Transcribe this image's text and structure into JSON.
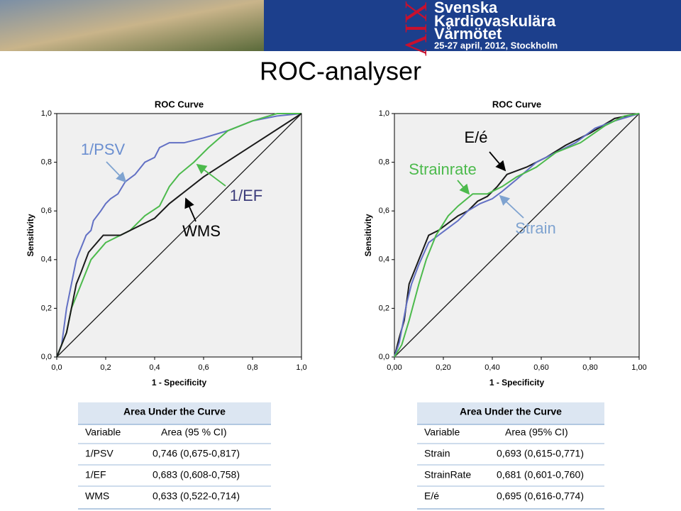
{
  "header": {
    "roman": "XIV",
    "line1": "Svenska",
    "line2": "Kardiovaskulära",
    "line3": "Vårmötet",
    "dates": "25-27 april, 2012, Stockholm"
  },
  "title": "ROC-analyser",
  "chart_data": [
    {
      "type": "line",
      "title": "ROC Curve",
      "x_label": "1 - Specificity",
      "y_label": "Sensitivity",
      "annotations": [
        "1/PSV",
        "1/EF",
        "WMS"
      ],
      "xlim": [
        0,
        1
      ],
      "ylim": [
        0,
        1
      ],
      "xticks": [
        {
          "value": 0,
          "label": "0,0"
        },
        {
          "value": 0.2,
          "label": "0,2"
        },
        {
          "value": 0.4,
          "label": "0,4"
        },
        {
          "value": 0.6,
          "label": "0,6"
        },
        {
          "value": 0.8,
          "label": "0,8"
        },
        {
          "value": 1,
          "label": "1,0"
        }
      ],
      "yticks": [
        {
          "value": 0,
          "label": "0,0"
        },
        {
          "value": 0.2,
          "label": "0,2"
        },
        {
          "value": 0.4,
          "label": "0,4"
        },
        {
          "value": 0.6,
          "label": "0,6"
        },
        {
          "value": 0.8,
          "label": "0,8"
        },
        {
          "value": 1,
          "label": "1,0"
        }
      ],
      "series": [
        {
          "name": "1/PSV",
          "color": "#6270c4",
          "x": [
            0,
            0.02,
            0.04,
            0.06,
            0.08,
            0.1,
            0.12,
            0.14,
            0.15,
            0.18,
            0.2,
            0.22,
            0.25,
            0.28,
            0.32,
            0.36,
            0.4,
            0.42,
            0.46,
            0.52,
            0.6,
            0.7,
            0.8,
            0.9,
            1
          ],
          "values": [
            0,
            0.05,
            0.2,
            0.3,
            0.4,
            0.45,
            0.5,
            0.52,
            0.56,
            0.6,
            0.63,
            0.65,
            0.67,
            0.72,
            0.75,
            0.8,
            0.82,
            0.86,
            0.88,
            0.88,
            0.9,
            0.93,
            0.97,
            0.99,
            1
          ]
        },
        {
          "name": "1/EF",
          "color": "#4cba4c",
          "x": [
            0,
            0.04,
            0.06,
            0.1,
            0.14,
            0.2,
            0.3,
            0.36,
            0.42,
            0.46,
            0.5,
            0.56,
            0.62,
            0.7,
            0.8,
            0.9,
            1
          ],
          "values": [
            0,
            0.1,
            0.2,
            0.3,
            0.4,
            0.47,
            0.52,
            0.58,
            0.62,
            0.7,
            0.75,
            0.8,
            0.86,
            0.93,
            0.97,
            1,
            1
          ]
        },
        {
          "name": "WMS",
          "color": "#1a1a1a",
          "x": [
            0,
            0.02,
            0.04,
            0.06,
            0.08,
            0.1,
            0.13,
            0.19,
            0.26,
            0.4,
            0.46,
            0.6,
            0.8,
            1
          ],
          "values": [
            0,
            0.05,
            0.1,
            0.2,
            0.3,
            0.35,
            0.43,
            0.5,
            0.5,
            0.57,
            0.63,
            0.74,
            0.87,
            1
          ]
        }
      ]
    },
    {
      "type": "line",
      "title": "ROC Curve",
      "x_label": "1 - Specificity",
      "y_label": "Sensitivity",
      "annotations": [
        "E/é",
        "Strainrate",
        "Strain"
      ],
      "xlim": [
        0,
        1
      ],
      "ylim": [
        0,
        1
      ],
      "xticks": [
        {
          "value": 0,
          "label": "0,00"
        },
        {
          "value": 0.2,
          "label": "0,20"
        },
        {
          "value": 0.4,
          "label": "0,40"
        },
        {
          "value": 0.6,
          "label": "0,60"
        },
        {
          "value": 0.8,
          "label": "0,80"
        },
        {
          "value": 1,
          "label": "1,00"
        }
      ],
      "yticks": [
        {
          "value": 0,
          "label": "0,0"
        },
        {
          "value": 0.2,
          "label": "0,2"
        },
        {
          "value": 0.4,
          "label": "0,4"
        },
        {
          "value": 0.6,
          "label": "0,6"
        },
        {
          "value": 0.8,
          "label": "0,8"
        },
        {
          "value": 1,
          "label": "1,0"
        }
      ],
      "series": [
        {
          "name": "E/é",
          "color": "#1a1a1a",
          "x": [
            0,
            0.02,
            0.04,
            0.06,
            0.1,
            0.12,
            0.14,
            0.18,
            0.22,
            0.26,
            0.3,
            0.34,
            0.38,
            0.42,
            0.46,
            0.54,
            0.62,
            0.7,
            0.8,
            0.9,
            1
          ],
          "values": [
            0,
            0.08,
            0.15,
            0.3,
            0.4,
            0.45,
            0.5,
            0.52,
            0.55,
            0.58,
            0.6,
            0.64,
            0.66,
            0.7,
            0.75,
            0.78,
            0.82,
            0.87,
            0.92,
            0.98,
            1
          ]
        },
        {
          "name": "Strain",
          "color": "#6270c4",
          "x": [
            0,
            0.02,
            0.05,
            0.07,
            0.1,
            0.14,
            0.18,
            0.22,
            0.26,
            0.3,
            0.35,
            0.4,
            0.44,
            0.5,
            0.58,
            0.66,
            0.74,
            0.82,
            0.9,
            1
          ],
          "values": [
            0,
            0.06,
            0.22,
            0.3,
            0.38,
            0.47,
            0.5,
            0.53,
            0.56,
            0.6,
            0.63,
            0.65,
            0.68,
            0.73,
            0.8,
            0.84,
            0.88,
            0.94,
            0.97,
            1
          ]
        },
        {
          "name": "Strainrate",
          "color": "#4cba4c",
          "x": [
            0,
            0.03,
            0.06,
            0.1,
            0.13,
            0.17,
            0.22,
            0.26,
            0.32,
            0.38,
            0.44,
            0.5,
            0.58,
            0.66,
            0.76,
            0.86,
            0.94,
            1
          ],
          "values": [
            0,
            0.05,
            0.15,
            0.3,
            0.4,
            0.5,
            0.58,
            0.62,
            0.67,
            0.67,
            0.7,
            0.74,
            0.78,
            0.84,
            0.88,
            0.95,
            0.99,
            1
          ]
        }
      ]
    }
  ],
  "tables": [
    {
      "title": "Area Under the Curve",
      "header": [
        "Variable",
        "Area (95 % CI)"
      ],
      "rows": [
        [
          "1/PSV",
          "0,746 (0,675-0,817)"
        ],
        [
          "1/EF",
          "0,683 (0,608-0,758)"
        ],
        [
          "WMS",
          "0,633 (0,522-0,714)"
        ]
      ]
    },
    {
      "title": "Area Under the Curve",
      "header": [
        "Variable",
        "Area (95% CI)"
      ],
      "rows": [
        [
          "Strain",
          "0,693 (0,615-0,771)"
        ],
        [
          "StrainRate",
          "0,681 (0,601-0,760)"
        ],
        [
          "E/é",
          "0,695 (0,616-0,774)"
        ]
      ]
    }
  ]
}
